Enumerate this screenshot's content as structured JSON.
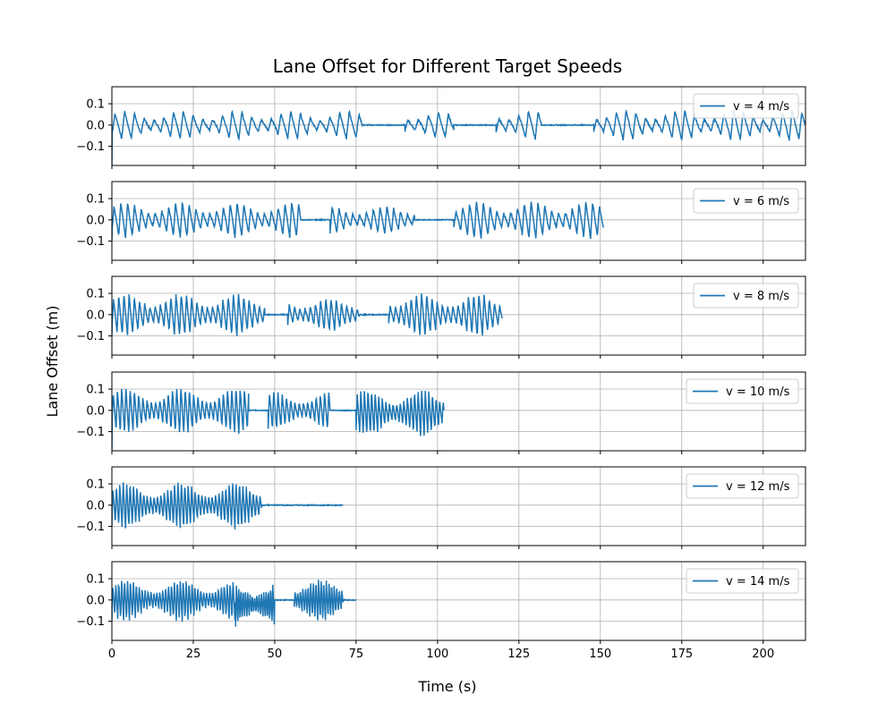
{
  "chart_data": {
    "type": "line",
    "title": "Lane Offset for Different Target Speeds",
    "xlabel": "Time (s)",
    "ylabel": "Lane Offset (m)",
    "xlim": [
      0,
      213
    ],
    "ylim": [
      -0.19,
      0.18
    ],
    "xticks": [
      0,
      25,
      50,
      75,
      100,
      125,
      150,
      175,
      200
    ],
    "yticks": [
      0.1,
      0.0,
      -0.1
    ],
    "ytick_labels": [
      "0.1",
      "0.0",
      "−0.1"
    ],
    "grid": true,
    "legend_position": "top-right",
    "line_color": "#1f77b4",
    "series": [
      {
        "name": "v = 4 m/s",
        "t_end": 213,
        "segments": [
          {
            "kind": "osc",
            "t0": 0,
            "t1": 77,
            "period": 3.0,
            "amp": 0.06,
            "offset": 0.0
          },
          {
            "kind": "flat",
            "t0": 77,
            "t1": 90
          },
          {
            "kind": "osc",
            "t0": 90,
            "t1": 105,
            "period": 3.1,
            "amp": 0.055,
            "offset": 0.0
          },
          {
            "kind": "flat",
            "t0": 105,
            "t1": 118
          },
          {
            "kind": "osc",
            "t0": 118,
            "t1": 132,
            "period": 3.0,
            "amp": 0.06,
            "offset": 0.0
          },
          {
            "kind": "flat",
            "t0": 132,
            "t1": 148
          },
          {
            "kind": "osc",
            "t0": 148,
            "t1": 213,
            "period": 3.0,
            "amp": 0.065,
            "offset": 0.0
          }
        ],
        "start_value": -0.19
      },
      {
        "name": "v = 6 m/s",
        "t_end": 151,
        "segments": [
          {
            "kind": "osc",
            "t0": 0,
            "t1": 58,
            "period": 2.1,
            "amp": 0.075,
            "offset": 0.0
          },
          {
            "kind": "flat",
            "t0": 58,
            "t1": 67
          },
          {
            "kind": "osc",
            "t0": 67,
            "t1": 93,
            "period": 2.1,
            "amp": 0.06,
            "offset": 0.0
          },
          {
            "kind": "flat",
            "t0": 93,
            "t1": 105
          },
          {
            "kind": "osc",
            "t0": 105,
            "t1": 151,
            "period": 2.1,
            "amp": 0.08,
            "offset": 0.0
          }
        ],
        "start_value": -0.1
      },
      {
        "name": "v = 8 m/s",
        "t_end": 120,
        "segments": [
          {
            "kind": "osc",
            "t0": 0,
            "t1": 47,
            "period": 1.6,
            "amp": 0.09,
            "offset": 0.0
          },
          {
            "kind": "flat",
            "t0": 47,
            "t1": 54
          },
          {
            "kind": "osc",
            "t0": 54,
            "t1": 76,
            "period": 1.6,
            "amp": 0.07,
            "offset": 0.0
          },
          {
            "kind": "flat",
            "t0": 76,
            "t1": 85
          },
          {
            "kind": "osc",
            "t0": 85,
            "t1": 120,
            "period": 1.6,
            "amp": 0.09,
            "offset": 0.0
          }
        ],
        "start_value": -0.1
      },
      {
        "name": "v = 10 m/s",
        "t_end": 102,
        "segments": [
          {
            "kind": "osc",
            "t0": 0,
            "t1": 42,
            "period": 1.3,
            "amp": 0.1,
            "offset": 0.0
          },
          {
            "kind": "flat",
            "t0": 42,
            "t1": 48
          },
          {
            "kind": "osc",
            "t0": 48,
            "t1": 67,
            "period": 1.3,
            "amp": 0.08,
            "offset": 0.0
          },
          {
            "kind": "flat",
            "t0": 67,
            "t1": 75
          },
          {
            "kind": "osc",
            "t0": 75,
            "t1": 102,
            "period": 1.1,
            "amp": 0.1,
            "offset": -0.01
          }
        ],
        "start_value": -0.19
      },
      {
        "name": "v = 12 m/s",
        "t_end": 71,
        "segments": [
          {
            "kind": "osc",
            "t0": 0,
            "t1": 46,
            "period": 1.05,
            "amp": 0.1,
            "offset": 0.0
          },
          {
            "kind": "flat",
            "t0": 46,
            "t1": 71
          }
        ],
        "start_value": -0.1
      },
      {
        "name": "v = 14 m/s",
        "t_end": 75,
        "segments": [
          {
            "kind": "osc",
            "t0": 0,
            "t1": 38,
            "period": 0.9,
            "amp": 0.09,
            "offset": 0.0
          },
          {
            "kind": "osc",
            "t0": 38,
            "t1": 50,
            "period": 0.7,
            "amp": 0.11,
            "offset": -0.02
          },
          {
            "kind": "flat",
            "t0": 50,
            "t1": 56
          },
          {
            "kind": "osc",
            "t0": 56,
            "t1": 71,
            "period": 0.8,
            "amp": 0.09,
            "offset": 0.0
          },
          {
            "kind": "flat",
            "t0": 71,
            "t1": 75
          }
        ],
        "start_value": -0.1
      }
    ]
  }
}
